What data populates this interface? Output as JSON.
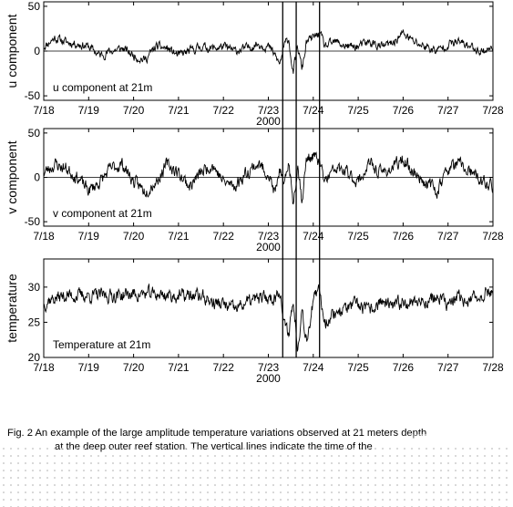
{
  "chart_data": [
    {
      "type": "line",
      "ylabel": "u component",
      "annotation": "u component at 21m",
      "ylim": [
        -55,
        55
      ],
      "yticks": [
        -50,
        0,
        50
      ],
      "xlim": [
        0,
        10
      ],
      "x_ticks": [
        {
          "value": 0,
          "label": "7/18"
        },
        {
          "value": 1,
          "label": "7/19"
        },
        {
          "value": 2,
          "label": "7/20"
        },
        {
          "value": 3,
          "label": "7/21"
        },
        {
          "value": 4,
          "label": "7/22"
        },
        {
          "value": 5,
          "label": "7/23"
        },
        {
          "value": 6,
          "label": "7/24"
        },
        {
          "value": 7,
          "label": "7/25"
        },
        {
          "value": 8,
          "label": "7/26"
        },
        {
          "value": 9,
          "label": "7/27"
        },
        {
          "value": 10,
          "label": "7/28"
        }
      ],
      "year_label": "2000",
      "zero_line": true,
      "series": [
        {
          "x": [
            0.0,
            0.25,
            0.5,
            0.75,
            1.0,
            1.25,
            1.5,
            1.75,
            2.0,
            2.25,
            2.5,
            2.75,
            3.0,
            3.25,
            3.5,
            3.75,
            4.0,
            4.25,
            4.5,
            4.75,
            5.0,
            5.15,
            5.25,
            5.35,
            5.45,
            5.55,
            5.65,
            5.75,
            5.85,
            6.0,
            6.15,
            6.25,
            6.5,
            6.75,
            7.0,
            7.25,
            7.5,
            7.75,
            8.0,
            8.25,
            8.5,
            8.75,
            9.0,
            9.25,
            9.5,
            9.75,
            10.0
          ],
          "values": [
            5,
            15,
            10,
            8,
            5,
            -5,
            0,
            3,
            -5,
            -10,
            5,
            3,
            -5,
            0,
            5,
            3,
            5,
            0,
            3,
            8,
            5,
            -5,
            -15,
            5,
            15,
            -25,
            5,
            -20,
            10,
            15,
            20,
            5,
            10,
            5,
            5,
            10,
            5,
            8,
            20,
            10,
            5,
            0,
            8,
            10,
            5,
            0,
            3
          ],
          "noise": 4,
          "seed": 11
        }
      ]
    },
    {
      "type": "line",
      "ylabel": "v component",
      "annotation": "v component at 21m",
      "ylim": [
        -55,
        55
      ],
      "yticks": [
        -50,
        0,
        50
      ],
      "xlim": [
        0,
        10
      ],
      "x_ticks": [
        {
          "value": 0,
          "label": "7/18"
        },
        {
          "value": 1,
          "label": "7/19"
        },
        {
          "value": 2,
          "label": "7/20"
        },
        {
          "value": 3,
          "label": "7/21"
        },
        {
          "value": 4,
          "label": "7/22"
        },
        {
          "value": 5,
          "label": "7/23"
        },
        {
          "value": 6,
          "label": "7/24"
        },
        {
          "value": 7,
          "label": "7/25"
        },
        {
          "value": 8,
          "label": "7/26"
        },
        {
          "value": 9,
          "label": "7/27"
        },
        {
          "value": 10,
          "label": "7/28"
        }
      ],
      "year_label": "2000",
      "zero_line": true,
      "series": [
        {
          "x": [
            0.0,
            0.25,
            0.5,
            0.75,
            1.0,
            1.25,
            1.5,
            1.75,
            2.0,
            2.25,
            2.5,
            2.75,
            3.0,
            3.25,
            3.5,
            3.75,
            4.0,
            4.25,
            4.5,
            4.75,
            5.0,
            5.15,
            5.25,
            5.35,
            5.45,
            5.55,
            5.65,
            5.75,
            5.85,
            6.0,
            6.15,
            6.25,
            6.5,
            6.75,
            7.0,
            7.25,
            7.5,
            7.75,
            8.0,
            8.25,
            8.5,
            8.75,
            9.0,
            9.25,
            9.5,
            9.75,
            10.0
          ],
          "values": [
            5,
            15,
            10,
            0,
            -15,
            -5,
            10,
            15,
            -5,
            -15,
            -5,
            15,
            5,
            -10,
            5,
            15,
            -5,
            -10,
            5,
            15,
            5,
            -20,
            10,
            -15,
            20,
            -30,
            15,
            -25,
            20,
            25,
            15,
            -5,
            10,
            5,
            -5,
            15,
            5,
            10,
            20,
            5,
            -5,
            -15,
            10,
            15,
            5,
            -5,
            -10
          ],
          "noise": 6,
          "seed": 23
        }
      ]
    },
    {
      "type": "line",
      "ylabel": "temperature",
      "annotation": "Temperature at 21m",
      "ylim": [
        20,
        34
      ],
      "yticks": [
        20,
        25,
        30
      ],
      "xlim": [
        0,
        10
      ],
      "x_ticks": [
        {
          "value": 0,
          "label": "7/18"
        },
        {
          "value": 1,
          "label": "7/19"
        },
        {
          "value": 2,
          "label": "7/20"
        },
        {
          "value": 3,
          "label": "7/21"
        },
        {
          "value": 4,
          "label": "7/22"
        },
        {
          "value": 5,
          "label": "7/23"
        },
        {
          "value": 6,
          "label": "7/24"
        },
        {
          "value": 7,
          "label": "7/25"
        },
        {
          "value": 8,
          "label": "7/26"
        },
        {
          "value": 9,
          "label": "7/27"
        },
        {
          "value": 10,
          "label": "7/28"
        }
      ],
      "year_label": "2000",
      "zero_line": false,
      "series": [
        {
          "x": [
            0.0,
            0.1,
            0.5,
            1.0,
            1.5,
            2.0,
            2.5,
            3.0,
            3.5,
            3.75,
            4.0,
            4.25,
            4.5,
            4.75,
            5.0,
            5.15,
            5.25,
            5.35,
            5.45,
            5.55,
            5.65,
            5.75,
            5.85,
            6.0,
            6.15,
            6.25,
            6.5,
            6.75,
            7.0,
            7.25,
            7.5,
            7.75,
            8.0,
            8.25,
            8.5,
            8.75,
            9.0,
            9.25,
            9.5,
            9.75,
            10.0
          ],
          "values": [
            27.5,
            28.2,
            28.8,
            28.8,
            28.8,
            29.0,
            29.0,
            28.7,
            28.8,
            27.8,
            27.5,
            26.8,
            27.8,
            28.3,
            28.5,
            28.5,
            30.0,
            24.5,
            23.5,
            28.0,
            21.5,
            27.0,
            22.5,
            28.0,
            29.5,
            25.0,
            26.5,
            27.0,
            27.5,
            26.5,
            28.0,
            27.0,
            28.0,
            28.0,
            28.0,
            28.5,
            27.5,
            28.5,
            28.0,
            29.0,
            29.5
          ],
          "noise": 0.8,
          "seed": 37
        }
      ]
    }
  ],
  "event_lines_x": [
    5.32,
    5.62,
    6.14
  ],
  "caption": {
    "line1": "Fig. 2  An example of the large amplitude temperature variations observed at 21 meters depth",
    "line2": "at the deep outer reef station.  The vertical lines indicate the time of the"
  }
}
